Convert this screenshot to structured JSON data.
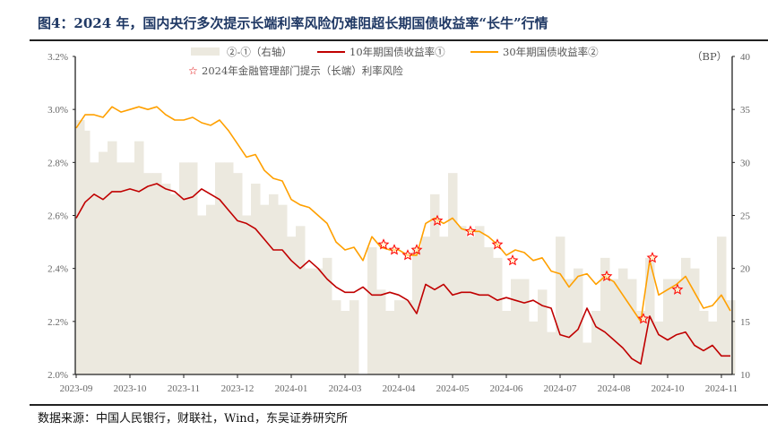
{
  "title": "图4：2024 年，国内央行多次提示长端利率风险仍难阻超长期国债收益率“长牛”行情",
  "source": "数据来源：中国人民银行，财联社，Wind，东吴证券研究所",
  "chart_data": {
    "type": "line",
    "title": "图4：2024 年，国内央行多次提示长端利率风险仍难阻超长期国债收益率“长牛”行情",
    "x_tick_labels": [
      "2023-09",
      "2023-10",
      "2023-11",
      "2023-12",
      "2024-01",
      "2024-03",
      "2024-04",
      "2024-05",
      "2024-06",
      "2024-07",
      "2024-08",
      "2024-10",
      "2024-11"
    ],
    "left_axis": {
      "ylim": [
        2.0,
        3.2
      ],
      "ticks": [
        "2.0%",
        "2.2%",
        "2.4%",
        "2.6%",
        "2.8%",
        "3.0%",
        "3.2%"
      ]
    },
    "right_axis": {
      "label": "（BP）",
      "ylim": [
        10,
        40
      ],
      "ticks": [
        "10",
        "15",
        "20",
        "25",
        "30",
        "35",
        "40"
      ]
    },
    "grid": false,
    "legend_placement": "top",
    "series": [
      {
        "name": "②-①（右轴）",
        "type": "area",
        "axis": "right",
        "color": "#ECE9DF",
        "values": [
          34,
          33,
          30,
          31,
          32,
          30,
          30,
          32,
          29,
          29,
          28,
          27,
          30,
          30,
          25,
          26,
          30,
          30,
          29,
          25,
          28,
          26,
          27,
          26,
          23,
          24,
          20,
          20,
          21,
          17,
          16,
          17,
          10,
          22,
          18,
          16,
          17,
          17,
          22,
          23,
          27,
          23,
          29,
          24,
          23,
          24,
          22,
          21,
          16,
          19,
          19,
          15,
          18,
          14,
          23,
          19,
          20,
          13,
          16,
          21,
          19,
          20,
          19,
          16,
          21,
          15,
          19,
          19,
          21,
          20,
          16,
          15,
          23,
          17
        ]
      },
      {
        "name": "10年期国债收益率①",
        "type": "line",
        "axis": "left",
        "color": "#C00000",
        "values": [
          2.59,
          2.65,
          2.68,
          2.66,
          2.69,
          2.69,
          2.7,
          2.69,
          2.71,
          2.72,
          2.7,
          2.69,
          2.66,
          2.67,
          2.7,
          2.68,
          2.66,
          2.62,
          2.58,
          2.57,
          2.55,
          2.51,
          2.47,
          2.47,
          2.43,
          2.4,
          2.43,
          2.4,
          2.36,
          2.33,
          2.31,
          2.31,
          2.33,
          2.3,
          2.3,
          2.31,
          2.3,
          2.28,
          2.23,
          2.34,
          2.32,
          2.34,
          2.3,
          2.31,
          2.31,
          2.3,
          2.3,
          2.28,
          2.29,
          2.28,
          2.27,
          2.28,
          2.26,
          2.25,
          2.15,
          2.14,
          2.17,
          2.25,
          2.18,
          2.16,
          2.13,
          2.1,
          2.06,
          2.04,
          2.22,
          2.15,
          2.13,
          2.15,
          2.16,
          2.11,
          2.09,
          2.11,
          2.07,
          2.07
        ]
      },
      {
        "name": "30年期国债收益率②",
        "type": "line",
        "axis": "left",
        "color": "#FFA000",
        "values": [
          2.93,
          2.98,
          2.98,
          2.97,
          3.01,
          2.99,
          3.0,
          3.01,
          3.0,
          3.01,
          2.98,
          2.96,
          2.96,
          2.97,
          2.95,
          2.94,
          2.96,
          2.92,
          2.87,
          2.82,
          2.83,
          2.77,
          2.74,
          2.73,
          2.66,
          2.64,
          2.63,
          2.6,
          2.57,
          2.5,
          2.47,
          2.48,
          2.43,
          2.52,
          2.48,
          2.47,
          2.47,
          2.45,
          2.45,
          2.57,
          2.59,
          2.57,
          2.59,
          2.55,
          2.54,
          2.54,
          2.52,
          2.49,
          2.45,
          2.47,
          2.46,
          2.43,
          2.44,
          2.39,
          2.38,
          2.33,
          2.37,
          2.38,
          2.34,
          2.37,
          2.35,
          2.3,
          2.25,
          2.2,
          2.43,
          2.3,
          2.32,
          2.34,
          2.37,
          2.31,
          2.25,
          2.26,
          2.3,
          2.24
        ]
      }
    ],
    "markers": {
      "name": "2024年金融管理部门提示（长端）利率风险",
      "symbol": "star",
      "color": "#FF0000",
      "points": [
        {
          "i": 34.3,
          "v": 2.49
        },
        {
          "i": 35.5,
          "v": 2.47
        },
        {
          "i": 37,
          "v": 2.45
        },
        {
          "i": 38,
          "v": 2.47
        },
        {
          "i": 40.3,
          "v": 2.58
        },
        {
          "i": 44,
          "v": 2.54
        },
        {
          "i": 47,
          "v": 2.49
        },
        {
          "i": 48.7,
          "v": 2.43
        },
        {
          "i": 59.2,
          "v": 2.37
        },
        {
          "i": 63.3,
          "v": 2.21
        },
        {
          "i": 64.3,
          "v": 2.44
        },
        {
          "i": 67.1,
          "v": 2.32
        }
      ]
    }
  }
}
